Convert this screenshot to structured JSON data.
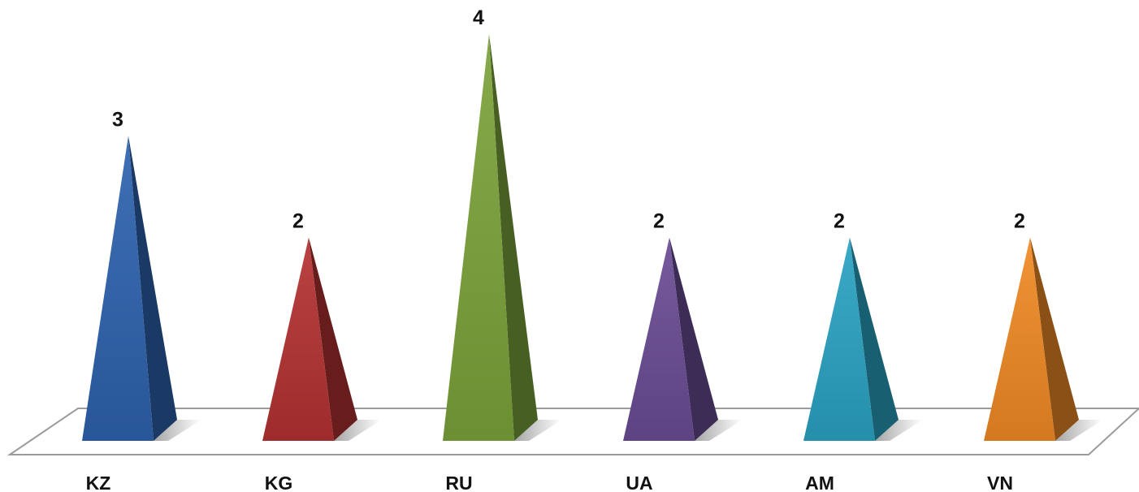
{
  "chart_data": {
    "type": "bar",
    "bar_shape": "3d-pyramid",
    "categories": [
      "KZ",
      "KG",
      "RU",
      "UA",
      "AM",
      "VN"
    ],
    "values": [
      3,
      2,
      4,
      2,
      2,
      2
    ],
    "colors": [
      "#2E62AE",
      "#B43232",
      "#7BA33A",
      "#6A4C94",
      "#2AA3C2",
      "#F08A24"
    ],
    "ylim": [
      0,
      4
    ],
    "grid": false,
    "legend": "none",
    "data_labels": true,
    "title": "",
    "xlabel": "",
    "ylabel": ""
  }
}
